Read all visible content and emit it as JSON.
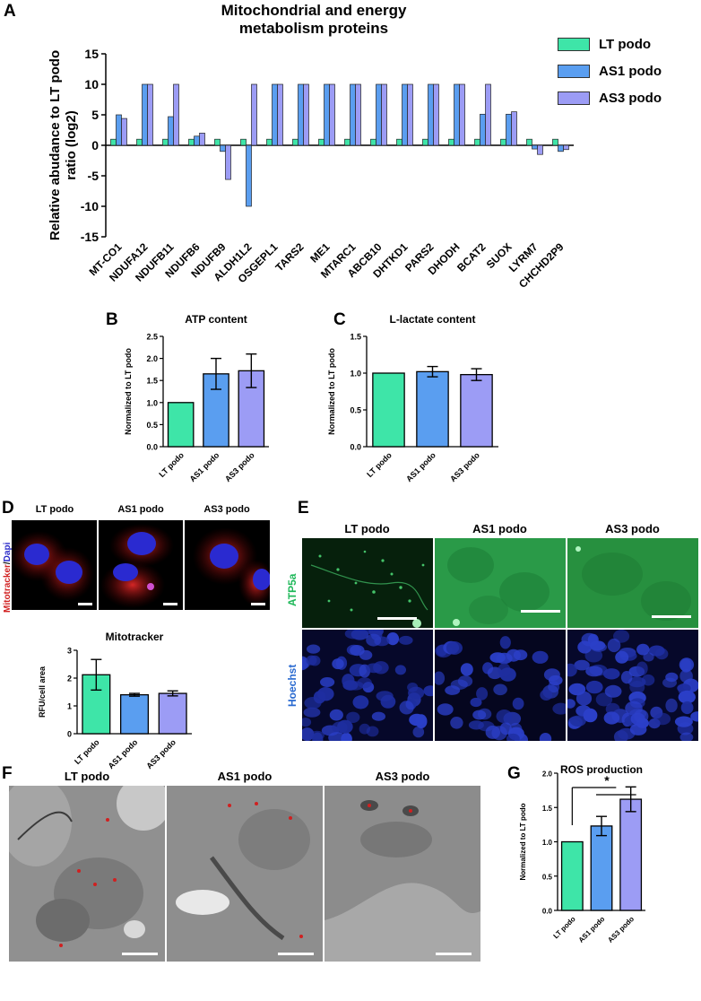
{
  "panels": {
    "A": "A",
    "B": "B",
    "C": "C",
    "D": "D",
    "E": "E",
    "F": "F",
    "G": "G"
  },
  "colors": {
    "lt": "#3ee5a8",
    "as1": "#5a9ef0",
    "as3": "#9c9cf5"
  },
  "panelA": {
    "title_line1": "Mitochondrial and energy",
    "title_line2": "metabolism proteins",
    "legend": [
      "LT podo",
      "AS1 podo",
      "AS3 podo"
    ]
  },
  "panelD": {
    "col_labels": [
      "LT podo",
      "AS1 podo",
      "AS3 podo"
    ],
    "side_label_a": "Mitotracker",
    "side_label_sep": "/",
    "side_label_b": "Dapi"
  },
  "panelE": {
    "col_labels": [
      "LT podo",
      "AS1 podo",
      "AS3 podo"
    ],
    "row_label_top": "ATP5a",
    "row_label_bottom": "Hoechst"
  },
  "panelF": {
    "col_labels": [
      "LT podo",
      "AS1 podo",
      "AS3 podo"
    ]
  },
  "chart_data": [
    {
      "id": "A",
      "type": "bar",
      "ylabel": "Relative abudance to LT podo ratio (log2)",
      "ylim": [
        -15,
        15
      ],
      "yticks": [
        -15,
        -10,
        -5,
        0,
        5,
        10,
        15
      ],
      "categories": [
        "MT-CO1",
        "NDUFA12",
        "NDUFB11",
        "NDUFB6",
        "NDUFB9",
        "ALDH1L2",
        "OSGEPL1",
        "TARS2",
        "ME1",
        "MTARC1",
        "ABCB10",
        "DHTKD1",
        "PARS2",
        "DHODH",
        "BCAT2",
        "SUOX",
        "LYRM7",
        "CHCHD2P9"
      ],
      "series": [
        {
          "name": "LT podo",
          "values": [
            1,
            1,
            1,
            1,
            1,
            1,
            1,
            1,
            1,
            1,
            1,
            1,
            1,
            1,
            1,
            1,
            1,
            1
          ]
        },
        {
          "name": "AS1 podo",
          "values": [
            5,
            10,
            4.7,
            1.5,
            -1,
            -10,
            10,
            10,
            10,
            10,
            10,
            10,
            10,
            10,
            5.1,
            5.1,
            -0.6,
            -1
          ]
        },
        {
          "name": "AS3 podo",
          "values": [
            4.4,
            10,
            10,
            2,
            -5.6,
            10,
            10,
            10,
            10,
            10,
            10,
            10,
            10,
            10,
            10,
            5.5,
            -1.5,
            -0.7
          ]
        }
      ]
    },
    {
      "id": "B",
      "type": "bar",
      "title": "ATP content",
      "ylabel": "Normalized to LT podo",
      "ylim": [
        0,
        2.5
      ],
      "yticks": [
        0,
        0.5,
        1.0,
        1.5,
        2.0,
        2.5
      ],
      "ytick_labels": [
        "0.0",
        "0.5",
        "1.0",
        "1.5",
        "2.0",
        "2.5"
      ],
      "categories": [
        "LT podo",
        "AS1 podo",
        "AS3 podo"
      ],
      "values": [
        1.0,
        1.65,
        1.72
      ],
      "errors": [
        0,
        0.35,
        0.38
      ]
    },
    {
      "id": "C",
      "type": "bar",
      "title": "L-lactate content",
      "ylabel": "Normalized to LT podo",
      "ylim": [
        0,
        1.5
      ],
      "yticks": [
        0,
        0.5,
        1.0,
        1.5
      ],
      "ytick_labels": [
        "0.0",
        "0.5",
        "1.0",
        "1.5"
      ],
      "categories": [
        "LT podo",
        "AS1 podo",
        "AS3 podo"
      ],
      "values": [
        1.0,
        1.02,
        0.98
      ],
      "errors": [
        0,
        0.07,
        0.08
      ]
    },
    {
      "id": "D",
      "type": "bar",
      "title": "Mitotracker",
      "ylabel": "RFU/cell area",
      "ylim": [
        0,
        3
      ],
      "yticks": [
        0,
        1,
        2,
        3
      ],
      "ytick_labels": [
        "0",
        "1",
        "2",
        "3"
      ],
      "categories": [
        "LT podo",
        "AS1 podo",
        "AS3 podo"
      ],
      "values": [
        2.12,
        1.4,
        1.45
      ],
      "errors": [
        0.55,
        0.05,
        0.09
      ]
    },
    {
      "id": "G",
      "type": "bar",
      "title": "ROS production",
      "ylabel": "Normalized to LT podo",
      "ylim": [
        0,
        2.0
      ],
      "yticks": [
        0,
        0.5,
        1.0,
        1.5,
        2.0
      ],
      "ytick_labels": [
        "0.0",
        "0.5",
        "1.0",
        "1.5",
        "2.0"
      ],
      "categories": [
        "LT podo",
        "AS1 podo",
        "AS3 podo"
      ],
      "values": [
        1.0,
        1.23,
        1.62
      ],
      "errors": [
        0,
        0.14,
        0.18
      ],
      "annotation": "*"
    }
  ]
}
